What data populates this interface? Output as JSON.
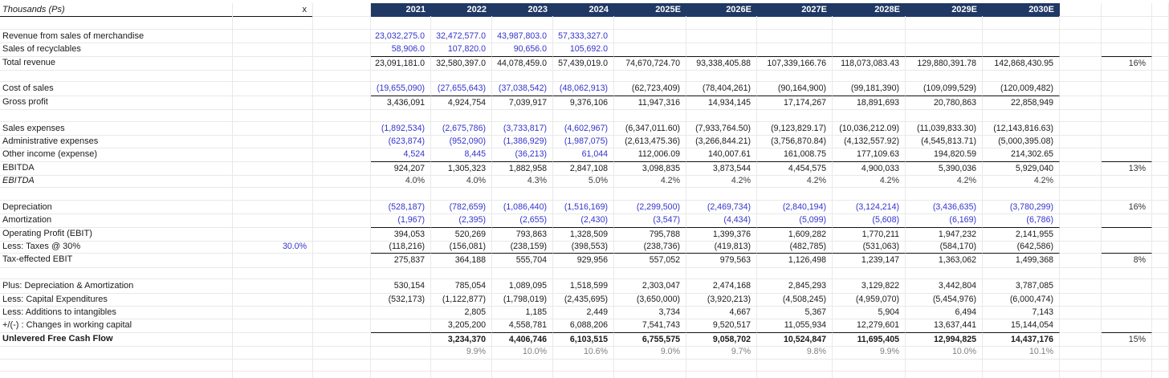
{
  "sheet": {
    "corner_label": "Thousands (Ps)",
    "multiplier_label": "x",
    "years": [
      "2021",
      "2022",
      "2023",
      "2024",
      "2025E",
      "2026E",
      "2027E",
      "2028E",
      "2029E",
      "2030E"
    ],
    "accent_colors": {
      "header_bg": "#1f3864",
      "header_text": "#ffffff",
      "input_blue": "#3333cc"
    },
    "rows": [
      {
        "type": "spacer"
      },
      {
        "label": "Revenue from sales of merchandise",
        "blue": 4,
        "values": [
          "23,032,275.0",
          "32,472,577.0",
          "43,987,803.0",
          "57,333,327.0",
          "",
          "",
          "",
          "",
          "",
          ""
        ]
      },
      {
        "label": "Sales of recyclables",
        "blue": 4,
        "values": [
          "58,906.0",
          "107,820.0",
          "90,656.0",
          "105,692.0",
          "",
          "",
          "",
          "",
          "",
          ""
        ]
      },
      {
        "label": "Total revenue",
        "borderTop": true,
        "side": "16%",
        "sideBorder": true,
        "values": [
          "23,091,181.0",
          "32,580,397.0",
          "44,078,459.0",
          "57,439,019.0",
          "74,670,724.70",
          "93,338,405.88",
          "107,339,166.76",
          "118,073,083.43",
          "129,880,391.78",
          "142,868,430.95"
        ]
      },
      {
        "type": "spacer"
      },
      {
        "label": "Cost of sales",
        "blue": 4,
        "values": [
          "(19,655,090)",
          "(27,655,643)",
          "(37,038,542)",
          "(48,062,913)",
          "(62,723,409)",
          "(78,404,261)",
          "(90,164,900)",
          "(99,181,390)",
          "(109,099,529)",
          "(120,009,482)"
        ]
      },
      {
        "label": "Gross profit",
        "borderTop": true,
        "values": [
          "3,436,091",
          "4,924,754",
          "7,039,917",
          "9,376,106",
          "11,947,316",
          "14,934,145",
          "17,174,267",
          "18,891,693",
          "20,780,863",
          "22,858,949"
        ]
      },
      {
        "type": "spacer"
      },
      {
        "label": "Sales expenses",
        "blue": 4,
        "values": [
          "(1,892,534)",
          "(2,675,786)",
          "(3,733,817)",
          "(4,602,967)",
          "(6,347,011.60)",
          "(7,933,764.50)",
          "(9,123,829.17)",
          "(10,036,212.09)",
          "(11,039,833.30)",
          "(12,143,816.63)"
        ]
      },
      {
        "label": "Administrative expenses",
        "blue": 4,
        "values": [
          "(623,874)",
          "(952,090)",
          "(1,386,929)",
          "(1,987,075)",
          "(2,613,475.36)",
          "(3,266,844.21)",
          "(3,756,870.84)",
          "(4,132,557.92)",
          "(4,545,813.71)",
          "(5,000,395.08)"
        ]
      },
      {
        "label": "Other income (expense)",
        "blue": 4,
        "values": [
          "4,524",
          "8,445",
          "(36,213)",
          "61,044",
          "112,006.09",
          "140,007.61",
          "161,008.75",
          "177,109.63",
          "194,820.59",
          "214,302.65"
        ]
      },
      {
        "label": "EBITDA",
        "borderTop": true,
        "side": "13%",
        "sideBorder": true,
        "values": [
          "924,207",
          "1,305,323",
          "1,882,958",
          "2,847,108",
          "3,098,835",
          "3,873,544",
          "4,454,575",
          "4,900,033",
          "5,390,036",
          "5,929,040"
        ]
      },
      {
        "label": "EBITDA",
        "labelItalic": true,
        "valClass": "pctdark",
        "values": [
          "4.0%",
          "4.0%",
          "4.3%",
          "5.0%",
          "4.2%",
          "4.2%",
          "4.2%",
          "4.2%",
          "4.2%",
          "4.2%"
        ]
      },
      {
        "type": "spacer"
      },
      {
        "label": "Depreciation",
        "blue": 10,
        "side": "16%",
        "values": [
          "(528,187)",
          "(782,659)",
          "(1,086,440)",
          "(1,516,169)",
          "(2,299,500)",
          "(2,469,734)",
          "(2,840,194)",
          "(3,124,214)",
          "(3,436,635)",
          "(3,780,299)"
        ]
      },
      {
        "label": "Amortization",
        "blue": 10,
        "values": [
          "(1,967)",
          "(2,395)",
          "(2,655)",
          "(2,430)",
          "(3,547)",
          "(4,434)",
          "(5,099)",
          "(5,608)",
          "(6,169)",
          "(6,786)"
        ]
      },
      {
        "label": "Operating Profit (EBIT)",
        "borderTop": true,
        "sideBorder": true,
        "values": [
          "394,053",
          "520,269",
          "793,863",
          "1,328,509",
          "795,788",
          "1,399,376",
          "1,609,282",
          "1,770,211",
          "1,947,232",
          "2,141,955"
        ]
      },
      {
        "label": "Less: Taxes @ 30%",
        "colB": "30.0%",
        "values": [
          "(118,216)",
          "(156,081)",
          "(238,159)",
          "(398,553)",
          "(238,736)",
          "(419,813)",
          "(482,785)",
          "(531,063)",
          "(584,170)",
          "(642,586)"
        ]
      },
      {
        "label": "Tax-effected EBIT",
        "borderTop": true,
        "side": "8%",
        "sideBorder": true,
        "values": [
          "275,837",
          "364,188",
          "555,704",
          "929,956",
          "557,052",
          "979,563",
          "1,126,498",
          "1,239,147",
          "1,363,062",
          "1,499,368"
        ]
      },
      {
        "type": "spacer"
      },
      {
        "label": "Plus: Depreciation & Amortization",
        "values": [
          "530,154",
          "785,054",
          "1,089,095",
          "1,518,599",
          "2,303,047",
          "2,474,168",
          "2,845,293",
          "3,129,822",
          "3,442,804",
          "3,787,085"
        ]
      },
      {
        "label": "Less: Capital Expenditures",
        "values": [
          "(532,173)",
          "(1,122,877)",
          "(1,798,019)",
          "(2,435,695)",
          "(3,650,000)",
          "(3,920,213)",
          "(4,508,245)",
          "(4,959,070)",
          "(5,454,976)",
          "(6,000,474)"
        ]
      },
      {
        "label": "Less: Additions to intangibles",
        "values": [
          "",
          "2,805",
          "1,185",
          "2,449",
          "3,734",
          "4,667",
          "5,367",
          "5,904",
          "6,494",
          "7,143"
        ]
      },
      {
        "label": "+/(-) : Changes in working capital",
        "values": [
          "",
          "3,205,200",
          "4,558,781",
          "6,088,206",
          "7,541,743",
          "9,520,517",
          "11,055,934",
          "12,279,601",
          "13,637,441",
          "15,144,054"
        ]
      },
      {
        "label": "Unlevered Free Cash Flow",
        "bold": true,
        "borderTop": true,
        "side": "15%",
        "sideBorder": true,
        "values": [
          "",
          "3,234,370",
          "4,406,746",
          "6,103,515",
          "6,755,575",
          "9,058,702",
          "10,524,847",
          "11,695,405",
          "12,994,825",
          "14,437,176"
        ]
      },
      {
        "label": "",
        "valClass": "pctgray",
        "values": [
          "",
          "9.9%",
          "10.0%",
          "10.6%",
          "9.0%",
          "9.7%",
          "9.8%",
          "9.9%",
          "10.0%",
          "10.1%"
        ]
      },
      {
        "type": "spacer"
      },
      {
        "type": "spacer"
      }
    ]
  }
}
